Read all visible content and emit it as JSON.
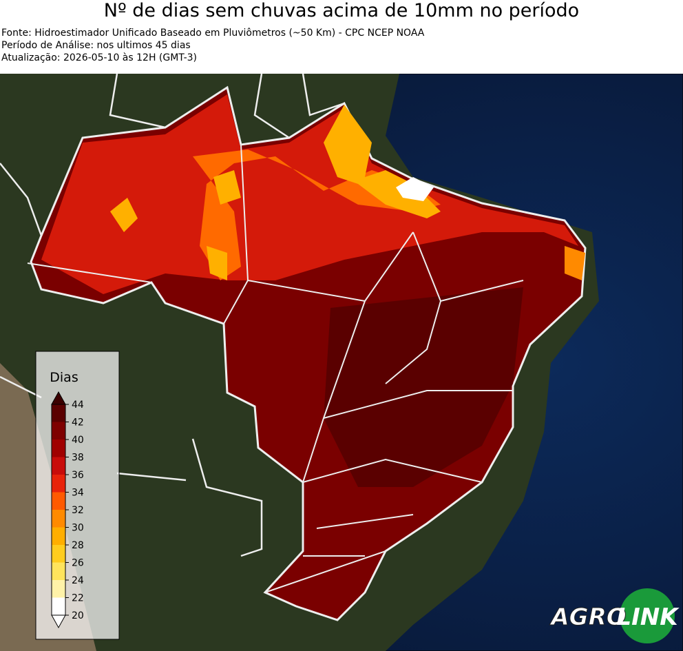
{
  "header": {
    "title": "Nº de dias sem chuvas acima de 10mm no período",
    "lines": [
      "Fonte: Hidroestimador Unificado Baseado em Pluviômetros (~50 Km) - CPC NCEP NOAA",
      "Período de Análise: nos ultimos 45 dias",
      "Atualização: 2026-05-10 às 12H (GMT-3)"
    ]
  },
  "legend": {
    "title": "Dias",
    "ticks": [
      20,
      22,
      24,
      26,
      28,
      30,
      32,
      34,
      36,
      38,
      40,
      42,
      44
    ],
    "colors": [
      "#ffffff",
      "#fff2a8",
      "#ffe45c",
      "#ffcc1e",
      "#ffae00",
      "#ff8a00",
      "#ff5a00",
      "#e8230a",
      "#c80c0a",
      "#a00000",
      "#7e0000",
      "#5a0000"
    ],
    "under_color": "#ffffff",
    "over_color": "#3c0000"
  },
  "logo": {
    "left": "AGRO",
    "right": "LINK"
  }
}
